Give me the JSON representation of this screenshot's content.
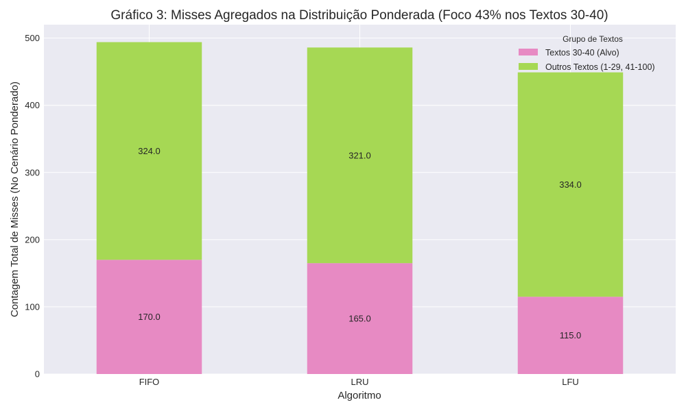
{
  "chart_data": {
    "type": "bar",
    "stacked": true,
    "title": "Gráfico 3: Misses Agregados na Distribuição Ponderada (Foco 43% nos Textos 30-40)",
    "xlabel": "Algoritmo",
    "ylabel": "Contagem Total de Misses (No Cenário Ponderado)",
    "categories": [
      "FIFO",
      "LRU",
      "LFU"
    ],
    "series": [
      {
        "name": "Textos 30-40 (Alvo)",
        "color": "#e78ac3",
        "values": [
          170.0,
          165.0,
          115.0
        ],
        "labels": [
          "170.0",
          "165.0",
          "115.0"
        ]
      },
      {
        "name": "Outros Textos (1-29, 41-100)",
        "color": "#a6d854",
        "values": [
          324.0,
          321.0,
          334.0
        ],
        "labels": [
          "324.0",
          "321.0",
          "334.0"
        ]
      }
    ],
    "ylim": [
      0,
      520
    ],
    "yticks": [
      0,
      100,
      200,
      300,
      400,
      500
    ],
    "ytick_labels": [
      "0",
      "100",
      "200",
      "300",
      "400",
      "500"
    ],
    "legend": {
      "title": "Grupo de Textos",
      "position": "top-right"
    },
    "grid": true,
    "background": "#eaeaf2",
    "grid_color": "#ffffff"
  }
}
